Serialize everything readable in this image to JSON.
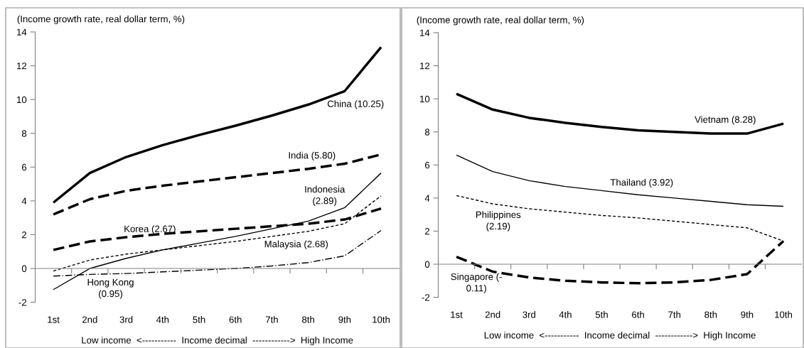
{
  "chart_data": [
    {
      "type": "line",
      "ylabel": "(Income growth rate, real dollar term, %)",
      "xlabel": "Low income  <-----------  Income decimal  ------------>  High Income",
      "categories": [
        "1st",
        "2nd",
        "3rd",
        "4th",
        "5th",
        "6th",
        "7th",
        "8th",
        "9th",
        "10th"
      ],
      "ylim": [
        -2,
        14
      ],
      "yticks": [
        -2,
        0,
        2,
        4,
        6,
        8,
        10,
        12,
        14
      ],
      "marker": "none",
      "series": [
        {
          "name": "China (10.25)",
          "color": "#000000",
          "line_style": "solid",
          "values": [
            3.9,
            5.65,
            6.6,
            7.3,
            7.9,
            8.45,
            9.05,
            9.7,
            10.5,
            13.1
          ]
        },
        {
          "name": "India (5.80)",
          "color": "#000000",
          "line_style": "dashed",
          "values": [
            3.2,
            4.1,
            4.6,
            4.9,
            5.15,
            5.4,
            5.65,
            5.9,
            6.2,
            6.75
          ]
        },
        {
          "name": "Korea (2.67)",
          "color": "#000000",
          "line_style": "dashed",
          "values": [
            1.1,
            1.6,
            1.85,
            2.05,
            2.2,
            2.35,
            2.5,
            2.65,
            2.9,
            3.55
          ]
        },
        {
          "name": "Indonesia\n(2.89)",
          "color": "#000000",
          "line_style": "solid",
          "values": [
            -1.25,
            0.0,
            0.6,
            1.1,
            1.5,
            1.9,
            2.35,
            2.8,
            3.6,
            5.65
          ]
        },
        {
          "name": "Malaysia (2.68)",
          "color": "#000000",
          "line_style": "dotted",
          "values": [
            -0.15,
            0.5,
            0.85,
            1.1,
            1.35,
            1.6,
            1.9,
            2.2,
            2.65,
            4.3
          ]
        },
        {
          "name": "Hong Kong\n(0.95)",
          "color": "#000000",
          "line_style": "dashdot",
          "values": [
            -0.45,
            -0.35,
            -0.3,
            -0.2,
            -0.1,
            0.0,
            0.15,
            0.35,
            0.75,
            2.25
          ]
        }
      ]
    },
    {
      "type": "line",
      "ylabel": "(Income growth rate, real dollar term, %)",
      "xlabel": "Low income  <-----------  Income decimal  ------------>  High Income",
      "categories": [
        "1st",
        "2nd",
        "3rd",
        "4th",
        "5th",
        "6th",
        "7th",
        "8th",
        "9th",
        "10th"
      ],
      "ylim": [
        -2,
        14
      ],
      "yticks": [
        -2,
        0,
        2,
        4,
        6,
        8,
        10,
        12,
        14
      ],
      "marker": "none",
      "series": [
        {
          "name": "Vietnam (8.28)",
          "color": "#000000",
          "line_style": "solid",
          "values": [
            10.3,
            9.35,
            8.85,
            8.55,
            8.3,
            8.1,
            8.0,
            7.9,
            7.9,
            8.5
          ]
        },
        {
          "name": "Thailand (3.92)",
          "color": "#000000",
          "line_style": "solid",
          "values": [
            6.6,
            5.6,
            5.05,
            4.7,
            4.45,
            4.2,
            4.0,
            3.8,
            3.6,
            3.5
          ]
        },
        {
          "name": "Philippines\n(2.19)",
          "color": "#000000",
          "line_style": "dotted",
          "values": [
            4.15,
            3.65,
            3.35,
            3.15,
            2.95,
            2.8,
            2.6,
            2.4,
            2.2,
            1.4
          ]
        },
        {
          "name": "Singapore (-\n0.11)",
          "color": "#000000",
          "line_style": "dashed",
          "values": [
            0.45,
            -0.45,
            -0.8,
            -1.0,
            -1.1,
            -1.15,
            -1.1,
            -0.95,
            -0.6,
            1.4
          ]
        }
      ]
    }
  ]
}
